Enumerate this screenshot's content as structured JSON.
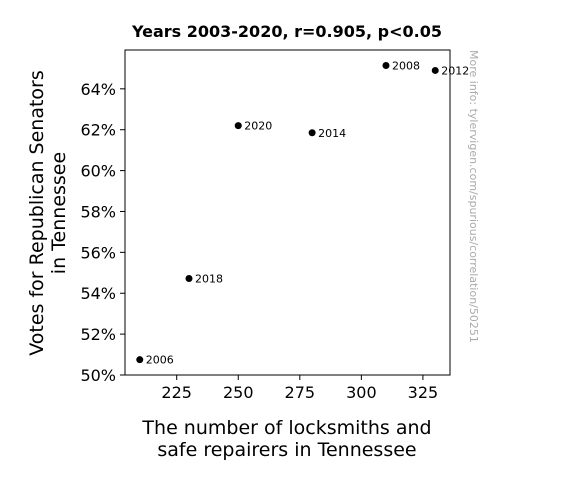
{
  "chart_data": {
    "type": "scatter",
    "title": "Years 2003-2020, r=0.905, p<0.05",
    "xlabel": [
      "The number of locksmiths and",
      "safe repairers in Tennessee"
    ],
    "ylabel": [
      "Votes for Republican Senators",
      "in Tennessee"
    ],
    "xlim": [
      204,
      336
    ],
    "ylim": [
      0.5,
      0.659
    ],
    "xticks": [
      225,
      250,
      275,
      300,
      325
    ],
    "yticks": [
      0.5,
      0.52,
      0.54,
      0.56,
      0.58,
      0.6,
      0.62,
      0.64
    ],
    "ytick_format": "percent",
    "grid": false,
    "points": [
      {
        "x": 210,
        "y": 0.5075,
        "label": "2006"
      },
      {
        "x": 230,
        "y": 0.5472,
        "label": "2018"
      },
      {
        "x": 250,
        "y": 0.622,
        "label": "2020"
      },
      {
        "x": 280,
        "y": 0.6185,
        "label": "2014"
      },
      {
        "x": 310,
        "y": 0.6514,
        "label": "2008"
      },
      {
        "x": 330,
        "y": 0.649,
        "label": "2012"
      }
    ],
    "point_color": "#000000"
  },
  "watermark": "More info: tylervigen.com/spurious/correlation/50251"
}
